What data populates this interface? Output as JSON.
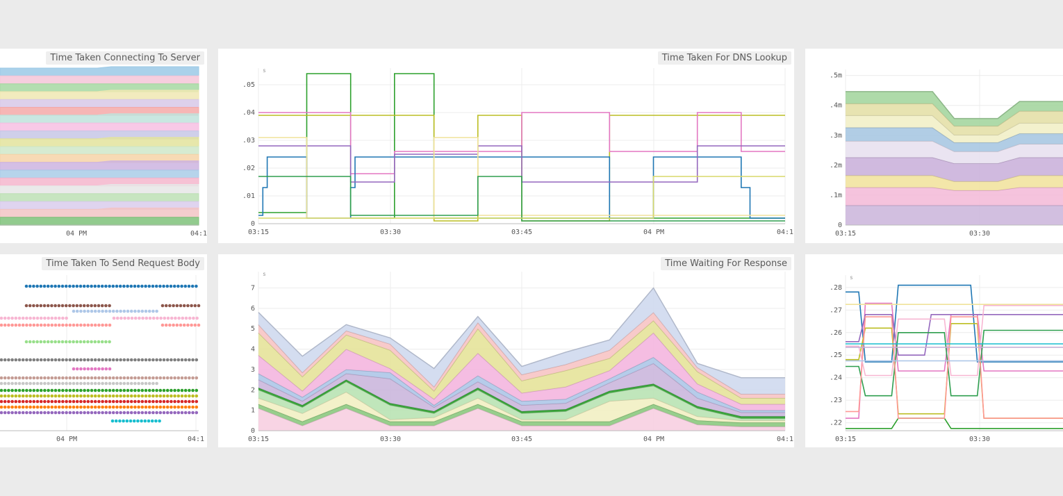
{
  "panels": {
    "p1": {
      "title": "Time Taken Connecting To Server"
    },
    "p2": {
      "title": "Time Taken For DNS Lookup"
    },
    "p3": {
      "title": ""
    },
    "p4": {
      "title": "Time Taken To Send Request Body"
    },
    "p5": {
      "title": "Time Waiting For Response"
    },
    "p6": {
      "title": ""
    }
  },
  "chart_data": [
    {
      "id": "p1",
      "type": "area",
      "title": "Time Taken Connecting To Server",
      "x": [
        "04 PM",
        "04:1"
      ],
      "stacked": true,
      "colors": [
        "#9bc9e6",
        "#f5c6d8",
        "#a6d8a2",
        "#f0e7b3",
        "#d7c8e8",
        "#f4a9a8",
        "#bfe3dc",
        "#f7bfe3",
        "#c7c7e6",
        "#e3e39c",
        "#cfe7c9",
        "#f6d3a8",
        "#cdb4e0",
        "#a9cce8",
        "#f4b6cc",
        "#e6e6e6",
        "#bde0b5",
        "#d9ccec",
        "#f2c4c4",
        "#7fc27a"
      ],
      "levels": 20
    },
    {
      "id": "p2",
      "type": "line",
      "title": "Time Taken For DNS Lookup",
      "unit": "s",
      "x_labels": [
        "03:15",
        "03:30",
        "03:45",
        "04 PM",
        "04:1"
      ],
      "y_ticks": [
        0,
        0.01,
        0.02,
        0.03,
        0.04,
        0.05
      ],
      "y_tick_labels": [
        "0",
        ".01",
        ".02",
        ".03",
        ".04",
        ".05"
      ],
      "ylim": [
        0,
        0.056
      ],
      "xlim": [
        0,
        60
      ],
      "series": [
        {
          "color": "#2ca02c",
          "x": [
            0,
            5.5,
            5.5,
            10.5,
            10.5,
            15.5,
            15.5,
            20,
            20,
            60
          ],
          "y": [
            0.004,
            0.004,
            0.054,
            0.054,
            0.002,
            0.002,
            0.054,
            0.054,
            0.002,
            0.002
          ]
        },
        {
          "color": "#bcbd22",
          "x": [
            0,
            20,
            20,
            25,
            25,
            30,
            30,
            40,
            40,
            60
          ],
          "y": [
            0.039,
            0.039,
            0.001,
            0.001,
            0.039,
            0.039,
            0.001,
            0.001,
            0.039,
            0.039
          ]
        },
        {
          "color": "#e377c2",
          "x": [
            0,
            10.5,
            10.5,
            15.5,
            15.5,
            30,
            30,
            40,
            40,
            50,
            50,
            55,
            55,
            60
          ],
          "y": [
            0.04,
            0.04,
            0.018,
            0.018,
            0.026,
            0.026,
            0.04,
            0.04,
            0.026,
            0.026,
            0.04,
            0.04,
            0.026,
            0.026
          ]
        },
        {
          "color": "#1f77b4",
          "x": [
            0,
            0.5,
            0.5,
            1,
            1,
            5.5,
            5.5,
            10.5,
            10.5,
            11,
            11,
            40,
            40,
            45,
            45,
            55,
            55,
            56,
            56,
            60
          ],
          "y": [
            0.003,
            0.003,
            0.013,
            0.013,
            0.024,
            0.024,
            0.002,
            0.002,
            0.013,
            0.013,
            0.024,
            0.024,
            0.002,
            0.002,
            0.024,
            0.024,
            0.013,
            0.013,
            0.002,
            0.002
          ]
        },
        {
          "color": "#9467bd",
          "x": [
            0,
            10.5,
            10.5,
            15.5,
            15.5,
            25,
            25,
            30,
            30,
            50,
            50,
            60
          ],
          "y": [
            0.028,
            0.028,
            0.015,
            0.015,
            0.025,
            0.025,
            0.028,
            0.028,
            0.015,
            0.015,
            0.028,
            0.028
          ]
        },
        {
          "color": "#f0e29a",
          "x": [
            0,
            5.5,
            5.5,
            20,
            20,
            25,
            25,
            60
          ],
          "y": [
            0.031,
            0.031,
            0.002,
            0.002,
            0.031,
            0.031,
            0.003,
            0.003
          ]
        },
        {
          "color": "#2e9e4e",
          "x": [
            0,
            10.5,
            10.5,
            25,
            25,
            30,
            30,
            60
          ],
          "y": [
            0.017,
            0.017,
            0.003,
            0.003,
            0.017,
            0.017,
            0.001,
            0.001
          ]
        },
        {
          "color": "#d9d96a",
          "x": [
            0,
            45,
            45,
            60
          ],
          "y": [
            0.002,
            0.002,
            0.017,
            0.017
          ]
        }
      ]
    },
    {
      "id": "p3",
      "type": "area",
      "stacked": true,
      "x_labels": [
        "03:15",
        "03:30"
      ],
      "y_ticks": [
        0,
        0.0001,
        0.0002,
        0.0003,
        0.0004,
        0.0005
      ],
      "y_tick_labels": [
        "0",
        ".1m",
        ".2m",
        ".3m",
        ".4m",
        ".5m"
      ],
      "ylim": [
        0,
        0.00052
      ],
      "x": [
        0,
        4,
        5,
        7,
        8,
        10
      ],
      "series": [
        {
          "color": "#cdb8dd",
          "values": [
            6.6e-05,
            6.6e-05,
            6.6e-05,
            6.6e-05,
            6.6e-05,
            6.6e-05
          ]
        },
        {
          "color": "#f4bcd9",
          "values": [
            6e-05,
            6e-05,
            5e-05,
            5e-05,
            6e-05,
            6e-05
          ]
        },
        {
          "color": "#f2e3a0",
          "values": [
            4e-05,
            4e-05,
            3e-05,
            3e-05,
            4e-05,
            4e-05
          ]
        },
        {
          "color": "#cbb2db",
          "values": [
            6e-05,
            6e-05,
            6e-05,
            6e-05,
            6e-05,
            6e-05
          ]
        },
        {
          "color": "#e8e1ef",
          "values": [
            5.5e-05,
            5.5e-05,
            4e-05,
            4e-05,
            4.5e-05,
            4.5e-05
          ]
        },
        {
          "color": "#a9c8e2",
          "values": [
            4.5e-05,
            4.5e-05,
            3e-05,
            3e-05,
            3.5e-05,
            3.5e-05
          ]
        },
        {
          "color": "#f2efc8",
          "values": [
            4e-05,
            4e-05,
            2.5e-05,
            2.5e-05,
            3.5e-05,
            3.5e-05
          ]
        },
        {
          "color": "#e4e0a8",
          "values": [
            4e-05,
            4e-05,
            3e-05,
            3e-05,
            4e-05,
            4e-05
          ]
        },
        {
          "color": "#a5d6a0",
          "values": [
            4e-05,
            4e-05,
            2.5e-05,
            2.5e-05,
            3.2e-05,
            3.2e-05
          ]
        }
      ]
    },
    {
      "id": "p4",
      "type": "scatter",
      "title": "Time Taken To Send Request Body",
      "x_labels": [
        "04 PM",
        "04:1"
      ],
      "colors": [
        "#1f77b4",
        "#8c564b",
        "#aec7e8",
        "#f7b6d2",
        "#ff9896",
        "#98df8a",
        "#7f7f7f",
        "#e377c2",
        "#c49c94",
        "#c7c7c7",
        "#2ca02c",
        "#bcbd22",
        "#d62728",
        "#ff7f0e",
        "#9467bd",
        "#17becf"
      ],
      "rows": 16
    },
    {
      "id": "p5",
      "type": "area",
      "stacked": true,
      "title": "Time Waiting For Response",
      "unit": "s",
      "x_labels": [
        "03:15",
        "03:30",
        "03:45",
        "04 PM",
        "04:1"
      ],
      "y_ticks": [
        0,
        1,
        2,
        3,
        4,
        5,
        6,
        7
      ],
      "y_tick_labels": [
        "0",
        "1",
        "2",
        "3",
        "4",
        "5",
        "6",
        "7"
      ],
      "ylim": [
        0,
        7.8
      ],
      "x": [
        0,
        5,
        10,
        15,
        20,
        25,
        30,
        35,
        40,
        45,
        50,
        55,
        60
      ],
      "series": [
        {
          "color": "#f7cfe1",
          "values": [
            1.1,
            0.25,
            1.1,
            0.25,
            0.25,
            1.1,
            0.25,
            0.25,
            0.25,
            1.1,
            0.3,
            0.2,
            0.2
          ]
        },
        {
          "color": "#8cc97f",
          "values": [
            0.2,
            0.2,
            0.2,
            0.2,
            0.2,
            0.2,
            0.2,
            0.2,
            0.2,
            0.2,
            0.2,
            0.2,
            0.2
          ]
        },
        {
          "color": "#f2efc3",
          "values": [
            0.3,
            0.4,
            0.6,
            0.1,
            0.2,
            0.3,
            0.1,
            0.1,
            1.0,
            0.3,
            0.2,
            0.1,
            0.1
          ]
        },
        {
          "color": "#b9e3b4",
          "values": [
            0.4,
            0.3,
            0.5,
            0.7,
            0.2,
            0.4,
            0.3,
            0.4,
            0.4,
            0.6,
            0.4,
            0.1,
            0.1
          ]
        },
        {
          "color": "#2ca02c",
          "values": [
            0.1,
            0.1,
            0.1,
            0.1,
            0.1,
            0.1,
            0.1,
            0.1,
            0.1,
            0.1,
            0.1,
            0.1,
            0.1
          ]
        },
        {
          "color": "#cbb7dd",
          "values": [
            0.4,
            0.2,
            0.3,
            1.2,
            0.2,
            0.3,
            0.3,
            0.3,
            0.4,
            1.0,
            0.4,
            0.2,
            0.2
          ]
        },
        {
          "color": "#aec7e8",
          "values": [
            0.3,
            0.2,
            0.2,
            0.3,
            0.1,
            0.3,
            0.2,
            0.2,
            0.2,
            0.3,
            0.3,
            0.1,
            0.1
          ]
        },
        {
          "color": "#f4b6df",
          "values": [
            0.9,
            0.3,
            1.0,
            0.2,
            0.3,
            1.1,
            0.4,
            0.6,
            0.4,
            1.2,
            0.4,
            0.3,
            0.3
          ]
        },
        {
          "color": "#e6e39a",
          "values": [
            1.1,
            0.7,
            0.7,
            0.9,
            0.4,
            1.2,
            0.6,
            0.8,
            0.6,
            0.6,
            0.6,
            0.3,
            0.3
          ]
        },
        {
          "color": "#f7c4c4",
          "values": [
            0.4,
            0.2,
            0.2,
            0.3,
            0.2,
            0.3,
            0.3,
            0.3,
            0.4,
            0.4,
            0.2,
            0.2,
            0.2
          ]
        },
        {
          "color": "#cfd9ee",
          "values": [
            0.6,
            0.8,
            0.3,
            0.3,
            0.9,
            0.3,
            0.4,
            0.6,
            0.5,
            1.2,
            0.2,
            0.8,
            0.8
          ]
        }
      ]
    },
    {
      "id": "p6",
      "type": "line",
      "unit": "s",
      "x_labels": [
        "03:15",
        "03:30"
      ],
      "y_ticks": [
        0.22,
        0.23,
        0.24,
        0.25,
        0.26,
        0.27,
        0.28
      ],
      "y_tick_labels": [
        ".22",
        ".23",
        ".24",
        ".25",
        ".26",
        ".27",
        ".28"
      ],
      "ylim": [
        0.2165,
        0.2855
      ],
      "xlim": [
        0,
        33
      ],
      "series": [
        {
          "color": "#1f77b4",
          "x": [
            0,
            2,
            3,
            7,
            8,
            19,
            20,
            33
          ],
          "y": [
            0.278,
            0.278,
            0.247,
            0.247,
            0.281,
            0.281,
            0.247,
            0.247
          ]
        },
        {
          "color": "#2ca02c",
          "x": [
            0,
            2,
            3,
            7,
            8,
            15,
            16,
            33
          ],
          "y": [
            0.2175,
            0.2175,
            0.2175,
            0.2175,
            0.222,
            0.222,
            0.2175,
            0.2175
          ]
        },
        {
          "color": "#e377c2",
          "x": [
            0,
            2,
            3,
            7,
            8,
            15,
            16,
            20,
            21,
            33
          ],
          "y": [
            0.222,
            0.222,
            0.273,
            0.273,
            0.243,
            0.243,
            0.268,
            0.268,
            0.243,
            0.243
          ]
        },
        {
          "color": "#bcbd22",
          "x": [
            0,
            2,
            3,
            7,
            8,
            15,
            16,
            20,
            21,
            33
          ],
          "y": [
            0.248,
            0.248,
            0.262,
            0.262,
            0.224,
            0.224,
            0.264,
            0.264,
            0.222,
            0.222
          ]
        },
        {
          "color": "#9467bd",
          "x": [
            0,
            2,
            3,
            7,
            8,
            12,
            13,
            20,
            21,
            33
          ],
          "y": [
            0.256,
            0.256,
            0.268,
            0.268,
            0.25,
            0.25,
            0.268,
            0.268,
            0.268,
            0.268
          ]
        },
        {
          "color": "#2e9e4e",
          "x": [
            0,
            2,
            3,
            7,
            8,
            15,
            16,
            20,
            21,
            33
          ],
          "y": [
            0.245,
            0.245,
            0.232,
            0.232,
            0.26,
            0.26,
            0.232,
            0.232,
            0.261,
            0.261
          ]
        },
        {
          "color": "#ff9896",
          "x": [
            0,
            2,
            3,
            7,
            8,
            15,
            16,
            20,
            21,
            33
          ],
          "y": [
            0.225,
            0.225,
            0.267,
            0.267,
            0.222,
            0.222,
            0.267,
            0.267,
            0.222,
            0.222
          ]
        },
        {
          "color": "#f7b6d2",
          "x": [
            0,
            2,
            3,
            7,
            8,
            15,
            16,
            20,
            21,
            33
          ],
          "y": [
            0.254,
            0.254,
            0.241,
            0.241,
            0.266,
            0.266,
            0.241,
            0.241,
            0.272,
            0.272
          ]
        },
        {
          "color": "#aec7e8",
          "x": [
            0,
            33
          ],
          "y": [
            0.2475,
            0.2475
          ]
        },
        {
          "color": "#f0e29a",
          "x": [
            0,
            33
          ],
          "y": [
            0.2725,
            0.2725
          ]
        },
        {
          "color": "#c5b0d5",
          "x": [
            0,
            33
          ],
          "y": [
            0.2535,
            0.2535
          ]
        },
        {
          "color": "#17becf",
          "x": [
            0,
            2,
            3,
            33
          ],
          "y": [
            0.255,
            0.255,
            0.255,
            0.255
          ]
        }
      ]
    }
  ]
}
